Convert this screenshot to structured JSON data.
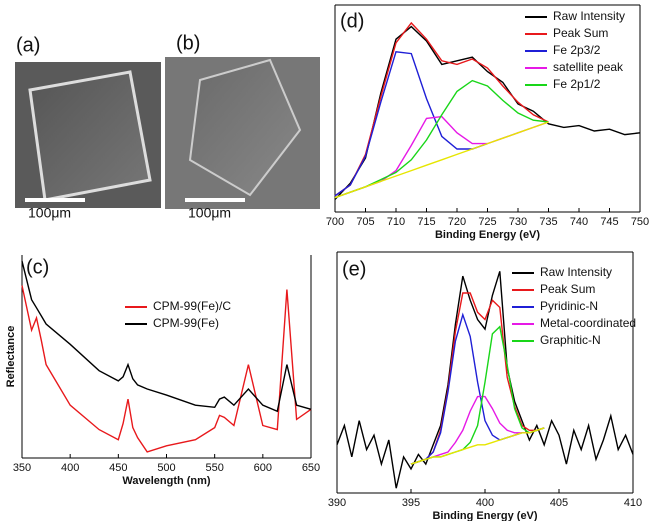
{
  "images": [
    {
      "label": "(a)",
      "scale_bar": "100μm"
    },
    {
      "label": "(b)",
      "scale_bar": "100μm"
    }
  ],
  "chart_data": [
    {
      "type": "line",
      "label": "(c)",
      "xlabel": "Wavelength (nm)",
      "ylabel": "Reflectance",
      "x": [
        350,
        360,
        365,
        370,
        375,
        400,
        430,
        450,
        455,
        460,
        465,
        470,
        480,
        500,
        530,
        550,
        555,
        560,
        570,
        585,
        600,
        615,
        625,
        635,
        650
      ],
      "xlim": [
        350,
        650
      ],
      "xticks": [
        350,
        400,
        450,
        500,
        550,
        600,
        650
      ],
      "ylim": [
        0,
        100
      ],
      "legend": "upper center",
      "series": [
        {
          "name": "CPM-99(Fe)/C",
          "color": "#e8191c",
          "values": [
            85,
            63,
            69,
            58,
            46,
            26,
            14,
            9,
            17,
            29,
            15,
            10,
            3,
            6,
            9,
            15,
            21,
            20,
            16,
            46,
            16,
            14,
            83,
            19,
            24
          ]
        },
        {
          "name": "CPM-99(Fe)",
          "color": "#000000",
          "values": [
            97,
            78,
            74,
            70,
            66,
            56,
            43,
            38,
            40,
            46,
            39,
            36,
            34,
            31,
            26,
            25,
            29,
            30,
            26,
            34,
            26,
            23,
            46,
            26,
            24
          ]
        }
      ]
    },
    {
      "type": "line",
      "label": "(d)",
      "xlabel": "Binding Energy (eV)",
      "x": [
        700,
        702.5,
        705,
        707.5,
        710,
        712.5,
        715,
        717.5,
        720,
        722.5,
        725,
        727.5,
        730,
        732.5,
        735,
        737.5,
        740,
        742.5,
        745,
        747.5,
        750
      ],
      "xlim": [
        700,
        750
      ],
      "xticks": [
        700,
        705,
        710,
        715,
        720,
        725,
        730,
        735,
        740,
        745,
        750
      ],
      "ylim": [
        0,
        115
      ],
      "legend": "upper right",
      "series": [
        {
          "name": "Raw Intensity",
          "color": "#000000",
          "values": [
            7,
            16,
            30,
            66,
            96,
            103,
            95,
            82,
            84,
            86,
            78,
            72,
            60,
            56,
            49,
            47,
            48,
            45,
            46,
            43,
            44
          ]
        },
        {
          "name": "Peak Sum",
          "color": "#e8191c",
          "values": [
            9,
            15,
            32,
            64,
            94,
            105,
            96,
            84,
            82,
            85,
            80,
            70,
            61,
            54,
            50,
            null,
            null,
            null,
            null,
            null,
            null
          ]
        },
        {
          "name": "Fe 2p3/2",
          "color": "#1f1fd6",
          "values": [
            9,
            15,
            31,
            61,
            89,
            88,
            63,
            42,
            35,
            35,
            38,
            null,
            null,
            null,
            null,
            null,
            null,
            null,
            null,
            null,
            null
          ]
        },
        {
          "name": "satellite peak",
          "color": "#e619e6",
          "values": [
            8,
            11,
            14,
            17,
            23,
            37,
            52,
            53,
            44,
            38,
            38,
            41,
            44,
            47,
            50,
            null,
            null,
            null,
            null,
            null,
            null
          ]
        },
        {
          "name": "Fe 2p1/2",
          "color": "#19d619",
          "values": [
            8,
            11,
            14,
            18,
            22,
            29,
            40,
            54,
            67,
            73,
            70,
            62,
            55,
            51,
            50,
            null,
            null,
            null,
            null,
            null,
            null
          ]
        },
        {
          "color": "#e6e600",
          "values": [
            8,
            11,
            14,
            17,
            20,
            23,
            26,
            29,
            32,
            35,
            38,
            41,
            44,
            47,
            50,
            null,
            null,
            null,
            null,
            null,
            null
          ]
        }
      ]
    },
    {
      "type": "line",
      "label": "(e)",
      "xlabel": "Binding Energy (eV)",
      "x": [
        390,
        390.5,
        391,
        391.5,
        392,
        392.5,
        393,
        393.5,
        394,
        394.5,
        395,
        395.5,
        396,
        396.5,
        397,
        397.5,
        398,
        398.5,
        399,
        399.5,
        400,
        400.5,
        401,
        401.5,
        402,
        402.5,
        403,
        403.5,
        404,
        404.5,
        405,
        405.5,
        406,
        406.5,
        407,
        407.5,
        408,
        408.5,
        409,
        409.5,
        410
      ],
      "xlim": [
        390,
        410
      ],
      "xticks": [
        390,
        395,
        400,
        405,
        410
      ],
      "ylim": [
        0,
        100
      ],
      "legend": "upper right",
      "series": [
        {
          "name": "Raw Intensity",
          "color": "#000000",
          "values": [
            20,
            28,
            15,
            30,
            18,
            24,
            12,
            22,
            2,
            15,
            10,
            16,
            12,
            20,
            28,
            45,
            70,
            90,
            80,
            72,
            68,
            82,
            92,
            52,
            38,
            30,
            22,
            28,
            20,
            30,
            24,
            12,
            26,
            18,
            28,
            14,
            22,
            32,
            18,
            24,
            16
          ]
        },
        {
          "name": "Peak Sum",
          "color": "#e8191c",
          "values": [
            null,
            null,
            null,
            null,
            null,
            null,
            null,
            null,
            null,
            null,
            12,
            13,
            14,
            17,
            26,
            43,
            67,
            83,
            83,
            75,
            72,
            80,
            77,
            48,
            36,
            28,
            26,
            26,
            27,
            null,
            null,
            null,
            null,
            null,
            null,
            null,
            null,
            null,
            null,
            null,
            null
          ]
        },
        {
          "name": "Pyridinic-N",
          "color": "#1f1fd6",
          "values": [
            null,
            null,
            null,
            null,
            null,
            null,
            null,
            null,
            null,
            null,
            12,
            13,
            14,
            17,
            25,
            42,
            63,
            74,
            65,
            46,
            30,
            24,
            22,
            23,
            24,
            25,
            25,
            26,
            27,
            null,
            null,
            null,
            null,
            null,
            null,
            null,
            null,
            null,
            null,
            null,
            null
          ]
        },
        {
          "name": "Metal-coordinated",
          "color": "#e619e6",
          "values": [
            null,
            null,
            null,
            null,
            null,
            null,
            null,
            null,
            null,
            null,
            12,
            13,
            14,
            15,
            16,
            17,
            21,
            26,
            34,
            40,
            40,
            35,
            29,
            26,
            25,
            25,
            25,
            26,
            27,
            null,
            null,
            null,
            null,
            null,
            null,
            null,
            null,
            null,
            null,
            null,
            null
          ]
        },
        {
          "name": "Graphitic-N",
          "color": "#19d619",
          "values": [
            null,
            null,
            null,
            null,
            null,
            null,
            null,
            null,
            null,
            null,
            12,
            13,
            14,
            15,
            15,
            16,
            17,
            18,
            21,
            28,
            46,
            66,
            69,
            53,
            35,
            27,
            25,
            26,
            27,
            null,
            null,
            null,
            null,
            null,
            null,
            null,
            null,
            null,
            null,
            null,
            null
          ]
        },
        {
          "color": "#e6e600",
          "values": [
            null,
            null,
            null,
            null,
            null,
            null,
            null,
            null,
            null,
            null,
            12,
            13,
            14,
            15,
            15,
            16,
            17,
            18,
            19,
            20,
            20,
            21,
            22,
            23,
            24,
            25,
            25,
            26,
            27,
            null,
            null,
            null,
            null,
            null,
            null,
            null,
            null,
            null,
            null,
            null,
            null
          ]
        }
      ]
    }
  ]
}
